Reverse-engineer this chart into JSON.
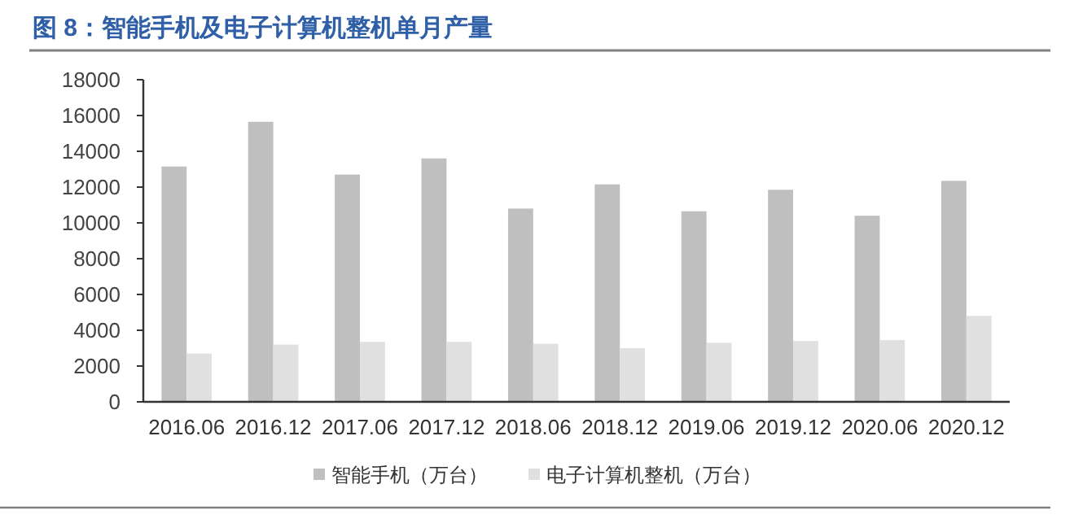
{
  "chart_data": {
    "type": "bar",
    "title": "图 8：智能手机及电子计算机整机单月产量",
    "categories": [
      "2016.06",
      "2016.12",
      "2017.06",
      "2017.12",
      "2018.06",
      "2018.12",
      "2019.06",
      "2019.12",
      "2020.06",
      "2020.12"
    ],
    "series": [
      {
        "name": "智能手机（万台）",
        "color": "#bfbfbf",
        "values": [
          13150,
          15650,
          12700,
          13600,
          10800,
          12150,
          10650,
          11850,
          10400,
          12350
        ]
      },
      {
        "name": "电子计算机整机（万台）",
        "color": "#e0e0e0",
        "values": [
          2700,
          3200,
          3350,
          3350,
          3250,
          3000,
          3300,
          3400,
          3450,
          4800
        ]
      }
    ],
    "ylim": [
      0,
      18000
    ],
    "yticks": [
      0,
      2000,
      4000,
      6000,
      8000,
      10000,
      12000,
      14000,
      16000,
      18000
    ],
    "grid": false,
    "legend": "bottom"
  }
}
